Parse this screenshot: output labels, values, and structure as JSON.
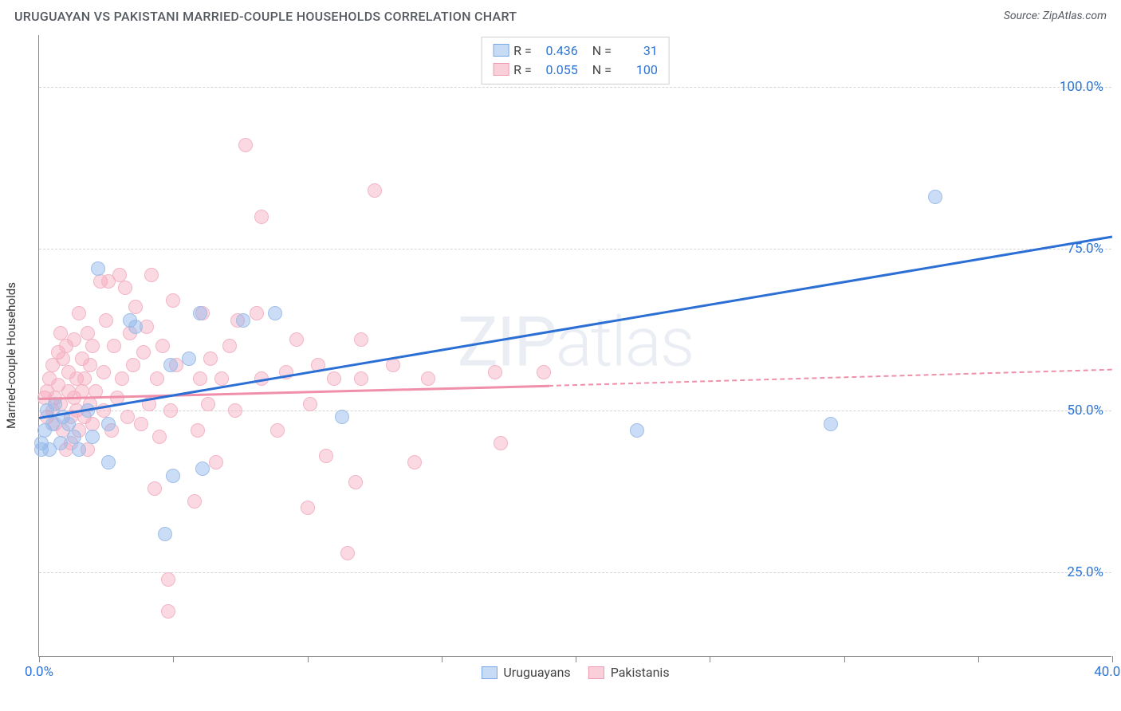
{
  "title": "URUGUAYAN VS PAKISTANI MARRIED-COUPLE HOUSEHOLDS CORRELATION CHART",
  "source": "Source: ZipAtlas.com",
  "ylabel": "Married-couple Households",
  "watermark_a": "ZIP",
  "watermark_b": "atlas",
  "xlim": [
    0,
    40
  ],
  "ylim": [
    12,
    108
  ],
  "x_ticks_major": [
    0,
    5,
    10,
    15,
    20,
    25,
    30,
    35,
    40
  ],
  "x_tick_labels": [
    {
      "x": 0,
      "label": "0.0%"
    },
    {
      "x": 40,
      "label": "40.0%"
    }
  ],
  "y_gridlines": [
    25,
    50,
    75,
    100
  ],
  "y_tick_labels": [
    "25.0%",
    "50.0%",
    "75.0%",
    "100.0%"
  ],
  "legend_top": [
    {
      "swatch_fill": "#c7dbf5",
      "swatch_border": "#7aa8e6",
      "r_label": "R =",
      "r_value": "0.436",
      "n_label": "N =",
      "n_value": "31"
    },
    {
      "swatch_fill": "#f9cfd9",
      "swatch_border": "#f19ab2",
      "r_label": "R =",
      "r_value": "0.055",
      "n_label": "N =",
      "n_value": "100"
    }
  ],
  "legend_bottom": [
    {
      "swatch_fill": "#c7dbf5",
      "swatch_border": "#7aa8e6",
      "label": "Uruguayans"
    },
    {
      "swatch_fill": "#f9cfd9",
      "swatch_border": "#f19ab2",
      "label": "Pakistanis"
    }
  ],
  "series": {
    "uruguayans": {
      "fill": "rgba(140,180,235,0.45)",
      "stroke": "#9fbfe8",
      "r": 9,
      "line_color": "#2b6fd4",
      "line_width": 3,
      "trend": {
        "x1": 0,
        "y1": 49,
        "x2": 40,
        "y2": 77
      },
      "points": [
        [
          0.1,
          44
        ],
        [
          0.1,
          45
        ],
        [
          0.2,
          47
        ],
        [
          0.3,
          50
        ],
        [
          0.4,
          44
        ],
        [
          0.5,
          48
        ],
        [
          0.6,
          51
        ],
        [
          0.8,
          45
        ],
        [
          0.9,
          49
        ],
        [
          1.1,
          48
        ],
        [
          1.3,
          46
        ],
        [
          1.5,
          44
        ],
        [
          1.8,
          50
        ],
        [
          2.0,
          46
        ],
        [
          2.2,
          72
        ],
        [
          2.6,
          48
        ],
        [
          2.6,
          42
        ],
        [
          3.4,
          64
        ],
        [
          3.6,
          63
        ],
        [
          4.9,
          57
        ],
        [
          5.0,
          40
        ],
        [
          4.7,
          31
        ],
        [
          6.0,
          65
        ],
        [
          6.1,
          41
        ],
        [
          5.6,
          58
        ],
        [
          7.6,
          64
        ],
        [
          8.8,
          65
        ],
        [
          11.3,
          49
        ],
        [
          22.3,
          47
        ],
        [
          29.5,
          48
        ],
        [
          33.4,
          83
        ]
      ]
    },
    "pakistanis": {
      "fill": "rgba(245,165,185,0.42)",
      "stroke": "#f2b5c5",
      "r": 9,
      "line_color": "#ef8fa9",
      "line_width": 2.5,
      "trend_solid": {
        "x1": 0,
        "y1": 52,
        "x2": 19,
        "y2": 54
      },
      "trend_dashed": {
        "x1": 19,
        "y1": 54,
        "x2": 40,
        "y2": 56.5
      },
      "points": [
        [
          0.2,
          52
        ],
        [
          0.3,
          53
        ],
        [
          0.3,
          49
        ],
        [
          0.4,
          55
        ],
        [
          0.5,
          50
        ],
        [
          0.5,
          57
        ],
        [
          0.6,
          52
        ],
        [
          0.6,
          48
        ],
        [
          0.7,
          59
        ],
        [
          0.7,
          54
        ],
        [
          0.8,
          62
        ],
        [
          0.8,
          51
        ],
        [
          0.9,
          47
        ],
        [
          0.9,
          58
        ],
        [
          1.0,
          44
        ],
        [
          1.0,
          60
        ],
        [
          1.1,
          53
        ],
        [
          1.1,
          56
        ],
        [
          1.2,
          49
        ],
        [
          1.2,
          45
        ],
        [
          1.3,
          52
        ],
        [
          1.3,
          61
        ],
        [
          1.4,
          55
        ],
        [
          1.4,
          50
        ],
        [
          1.5,
          65
        ],
        [
          1.5,
          47
        ],
        [
          1.6,
          58
        ],
        [
          1.6,
          53
        ],
        [
          1.7,
          49
        ],
        [
          1.7,
          55
        ],
        [
          1.8,
          62
        ],
        [
          1.8,
          44
        ],
        [
          1.9,
          57
        ],
        [
          1.9,
          51
        ],
        [
          2.0,
          48
        ],
        [
          2.0,
          60
        ],
        [
          2.1,
          53
        ],
        [
          2.3,
          70
        ],
        [
          2.4,
          56
        ],
        [
          2.4,
          50
        ],
        [
          2.5,
          64
        ],
        [
          2.6,
          70
        ],
        [
          2.7,
          47
        ],
        [
          2.8,
          60
        ],
        [
          2.9,
          52
        ],
        [
          3.0,
          71
        ],
        [
          3.1,
          55
        ],
        [
          3.2,
          69
        ],
        [
          3.3,
          49
        ],
        [
          3.4,
          62
        ],
        [
          3.5,
          57
        ],
        [
          3.6,
          66
        ],
        [
          3.8,
          48
        ],
        [
          3.9,
          59
        ],
        [
          4.0,
          63
        ],
        [
          4.1,
          51
        ],
        [
          4.2,
          71
        ],
        [
          4.3,
          38
        ],
        [
          4.4,
          55
        ],
        [
          4.5,
          46
        ],
        [
          4.6,
          60
        ],
        [
          4.8,
          24
        ],
        [
          4.8,
          19
        ],
        [
          4.9,
          50
        ],
        [
          5.0,
          67
        ],
        [
          5.1,
          57
        ],
        [
          5.8,
          36
        ],
        [
          5.9,
          47
        ],
        [
          6.0,
          55
        ],
        [
          6.1,
          65
        ],
        [
          6.3,
          51
        ],
        [
          6.4,
          58
        ],
        [
          6.6,
          42
        ],
        [
          6.8,
          55
        ],
        [
          7.1,
          60
        ],
        [
          7.3,
          50
        ],
        [
          7.4,
          64
        ],
        [
          7.7,
          91
        ],
        [
          8.1,
          65
        ],
        [
          8.3,
          55
        ],
        [
          8.3,
          80
        ],
        [
          8.9,
          47
        ],
        [
          9.2,
          56
        ],
        [
          9.6,
          61
        ],
        [
          10.0,
          35
        ],
        [
          10.1,
          51
        ],
        [
          10.4,
          57
        ],
        [
          10.7,
          43
        ],
        [
          11.0,
          55
        ],
        [
          11.5,
          28
        ],
        [
          11.8,
          39
        ],
        [
          12.0,
          61
        ],
        [
          12.0,
          55
        ],
        [
          12.5,
          84
        ],
        [
          13.2,
          57
        ],
        [
          14.0,
          42
        ],
        [
          14.5,
          55
        ],
        [
          17.0,
          56
        ],
        [
          17.2,
          45
        ],
        [
          18.8,
          56
        ]
      ]
    }
  }
}
